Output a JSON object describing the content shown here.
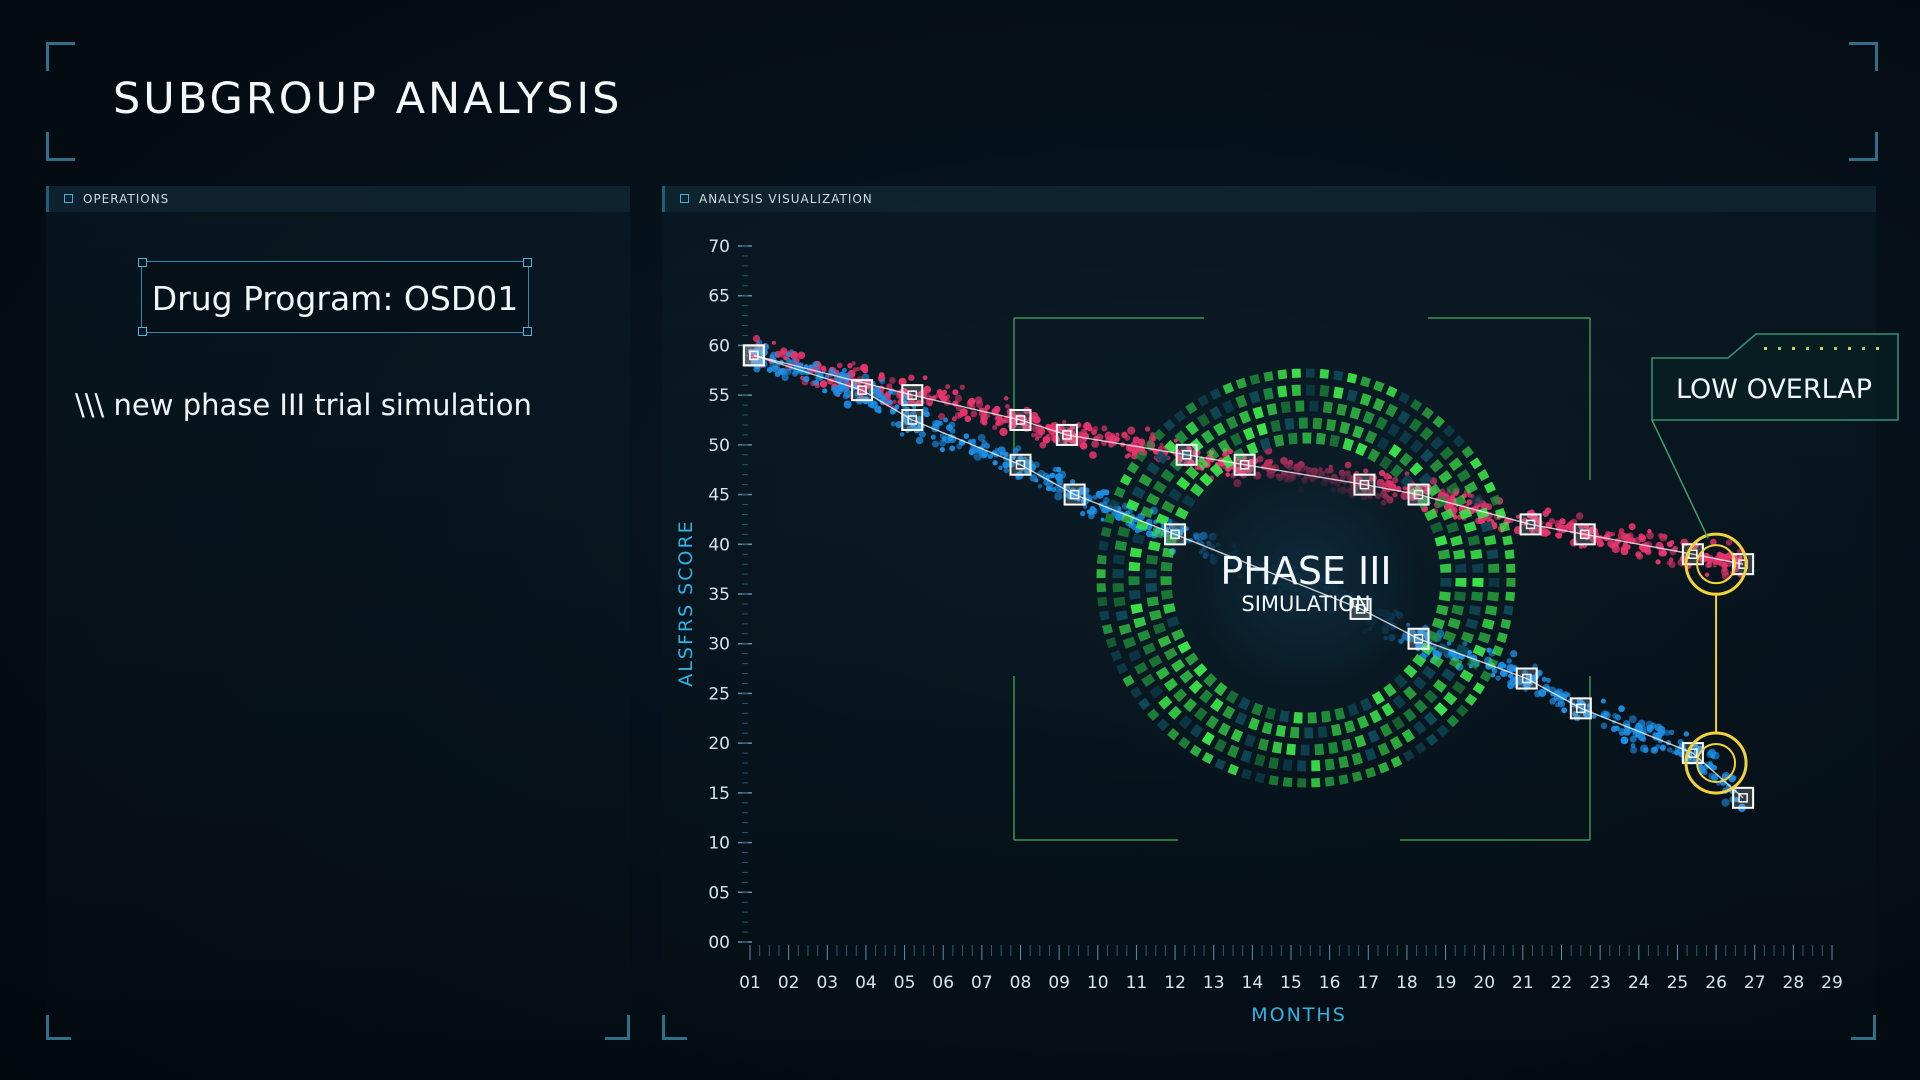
{
  "page": {
    "title": "SUBGROUP ANALYSIS"
  },
  "operations_panel": {
    "header": "OPERATIONS",
    "program_label": "Drug Program: OSD01",
    "subtitle": "\\\\\\ new phase III trial simulation"
  },
  "analysis_panel": {
    "header": "ANALYSIS VISUALIZATION"
  },
  "center_badge": {
    "line1": "PHASE III",
    "line2": "SIMULATION"
  },
  "callout": {
    "label": "LOW OVERLAP"
  },
  "colors": {
    "accent": "#38b6e6",
    "series_red": "#e8356d",
    "series_blue": "#1e8fe6",
    "ring_green": "#3be34a",
    "callout_yellow": "#f2d23a",
    "frame_green": "#4aa85a"
  },
  "chart_data": {
    "type": "scatter",
    "xlabel": "MONTHS",
    "ylabel": "ALSFRS SCORE",
    "x_ticks": [
      "01",
      "02",
      "03",
      "04",
      "05",
      "06",
      "07",
      "08",
      "09",
      "10",
      "11",
      "12",
      "13",
      "14",
      "15",
      "16",
      "17",
      "18",
      "19",
      "20",
      "21",
      "22",
      "23",
      "24",
      "25",
      "26",
      "27",
      "28",
      "29"
    ],
    "y_ticks": [
      "00",
      "05",
      "10",
      "15",
      "20",
      "25",
      "30",
      "35",
      "40",
      "45",
      "50",
      "55",
      "60",
      "65",
      "70"
    ],
    "xlim": [
      1,
      29
    ],
    "ylim": [
      0,
      70
    ],
    "grid": false,
    "series": [
      {
        "color": "#e8356d",
        "markers": [
          {
            "x": 1.1,
            "y": 59
          },
          {
            "x": 5.2,
            "y": 55
          },
          {
            "x": 8.0,
            "y": 52.5
          },
          {
            "x": 9.2,
            "y": 51
          },
          {
            "x": 12.3,
            "y": 49
          },
          {
            "x": 13.8,
            "y": 48
          },
          {
            "x": 16.9,
            "y": 46
          },
          {
            "x": 18.3,
            "y": 45
          },
          {
            "x": 21.2,
            "y": 42
          },
          {
            "x": 22.6,
            "y": 41
          },
          {
            "x": 25.4,
            "y": 39
          },
          {
            "x": 26.7,
            "y": 38
          }
        ]
      },
      {
        "color": "#1e8fe6",
        "markers": [
          {
            "x": 1.1,
            "y": 59
          },
          {
            "x": 3.9,
            "y": 55.5
          },
          {
            "x": 5.2,
            "y": 52.5
          },
          {
            "x": 8.0,
            "y": 48
          },
          {
            "x": 9.4,
            "y": 45
          },
          {
            "x": 12.0,
            "y": 41
          },
          {
            "x": 16.8,
            "y": 33.5
          },
          {
            "x": 18.3,
            "y": 30.5
          },
          {
            "x": 21.1,
            "y": 26.5
          },
          {
            "x": 22.5,
            "y": 23.5
          },
          {
            "x": 25.4,
            "y": 19
          },
          {
            "x": 26.7,
            "y": 14.5
          }
        ]
      }
    ]
  }
}
